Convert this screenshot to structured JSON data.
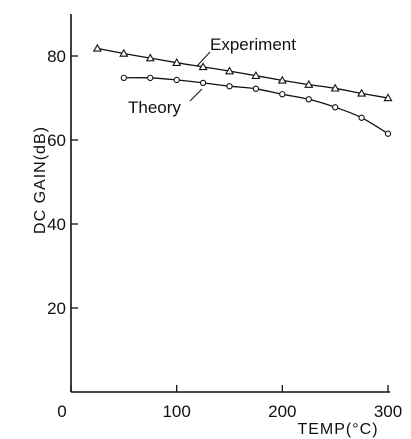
{
  "chart_data": {
    "type": "line",
    "title": "",
    "xlabel": "TEMP(°C)",
    "ylabel": "DC GAIN(dB)",
    "xlim": [
      0,
      300
    ],
    "ylim": [
      0,
      92
    ],
    "xticks": [
      0,
      100,
      200,
      300
    ],
    "yticks": [
      20,
      40,
      60,
      80
    ],
    "grid": false,
    "series": [
      {
        "name": "Experiment",
        "marker": "triangle",
        "x": [
          25,
          50,
          75,
          100,
          125,
          150,
          175,
          200,
          225,
          250,
          275,
          300
        ],
        "y": [
          81.8,
          80.6,
          79.5,
          78.4,
          77.4,
          76.4,
          75.3,
          74.2,
          73.2,
          72.3,
          71.1,
          70.0
        ]
      },
      {
        "name": "Theory",
        "marker": "circle",
        "x": [
          50,
          75,
          100,
          125,
          150,
          175,
          200,
          225,
          250,
          275,
          300
        ],
        "y": [
          74.8,
          74.8,
          74.3,
          73.6,
          72.8,
          72.2,
          70.9,
          69.7,
          67.8,
          65.3,
          61.5
        ]
      }
    ],
    "annotations": [
      {
        "text": "Experiment",
        "series": "Experiment"
      },
      {
        "text": "Theory",
        "series": "Theory"
      }
    ]
  }
}
